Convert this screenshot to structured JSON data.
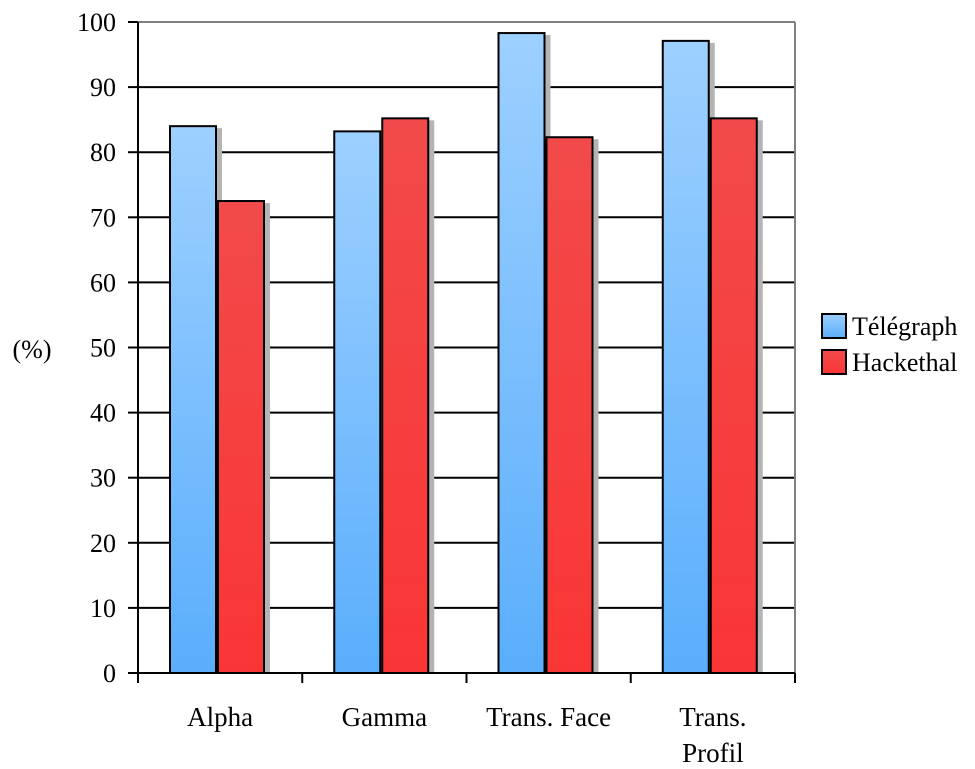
{
  "chart_data": {
    "type": "bar",
    "title": "",
    "xlabel": "",
    "ylabel": "(%)",
    "ylim": [
      0,
      100
    ],
    "yticks": [
      0,
      10,
      20,
      30,
      40,
      50,
      60,
      70,
      80,
      90,
      100
    ],
    "grid": true,
    "legend_position": "right",
    "categories": [
      "Alpha",
      "Gamma",
      "Trans. Face",
      "Trans.\nProfil"
    ],
    "series": [
      {
        "name": "Télégraph",
        "values": [
          84,
          83.2,
          98.3,
          97.1
        ],
        "color_top": "#9dd0ff",
        "color_bottom": "#5aaefc"
      },
      {
        "name": "Hackethal",
        "values": [
          72.5,
          85.2,
          82.3,
          85.2
        ],
        "color_top": "#f24a4a",
        "color_bottom": "#fa3535"
      }
    ]
  }
}
